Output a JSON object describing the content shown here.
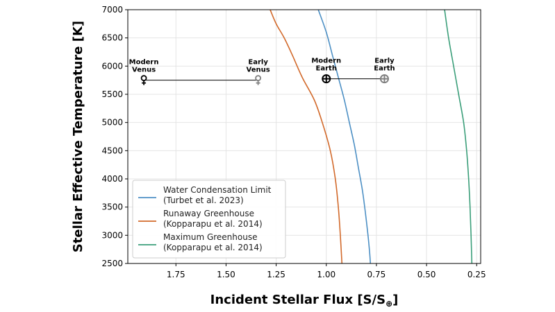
{
  "chart_data": {
    "type": "line",
    "xlabel": "Incident Stellar Flux [S/S",
    "xlabel_sub": "⊕",
    "xlabel_close": "]",
    "ylabel": "Stellar Effective Temperature [K]",
    "xlim": [
      1.99,
      0.23
    ],
    "ylim": [
      2500,
      7000
    ],
    "x_reversed": true,
    "grid": true,
    "legend_placement": "lower-left",
    "xticks": [
      {
        "value": 1.75,
        "label": "1.75"
      },
      {
        "value": 1.5,
        "label": "1.50"
      },
      {
        "value": 1.25,
        "label": "1.25"
      },
      {
        "value": 1.0,
        "label": "1.00"
      },
      {
        "value": 0.75,
        "label": "0.75"
      },
      {
        "value": 0.5,
        "label": "0.50"
      },
      {
        "value": 0.25,
        "label": "0.25"
      }
    ],
    "yticks": [
      {
        "value": 2500,
        "label": "2500"
      },
      {
        "value": 3000,
        "label": "3000"
      },
      {
        "value": 3500,
        "label": "3500"
      },
      {
        "value": 4000,
        "label": "4000"
      },
      {
        "value": 4500,
        "label": "4500"
      },
      {
        "value": 5000,
        "label": "5000"
      },
      {
        "value": 5500,
        "label": "5500"
      },
      {
        "value": 6000,
        "label": "6000"
      },
      {
        "value": 6500,
        "label": "6500"
      },
      {
        "value": 7000,
        "label": "7000"
      }
    ],
    "series": [
      {
        "name": "Water Condensation Limit",
        "name_line2": "(Turbet et al. 2023)",
        "color": "#4c8fc4",
        "points": [
          [
            1.04,
            7000
          ],
          [
            1.0,
            6600
          ],
          [
            0.97,
            6200
          ],
          [
            0.94,
            5800
          ],
          [
            0.91,
            5400
          ],
          [
            0.885,
            5000
          ],
          [
            0.86,
            4600
          ],
          [
            0.84,
            4200
          ],
          [
            0.82,
            3800
          ],
          [
            0.805,
            3400
          ],
          [
            0.792,
            3000
          ],
          [
            0.784,
            2700
          ],
          [
            0.78,
            2500
          ]
        ]
      },
      {
        "name": "Runaway Greenhouse",
        "name_line2": "(Kopparapu et al. 2014)",
        "color": "#d2692a",
        "points": [
          [
            1.28,
            7000
          ],
          [
            1.25,
            6750
          ],
          [
            1.21,
            6500
          ],
          [
            1.17,
            6200
          ],
          [
            1.12,
            5800
          ],
          [
            1.06,
            5400
          ],
          [
            1.02,
            5000
          ],
          [
            0.98,
            4500
          ],
          [
            0.955,
            4000
          ],
          [
            0.94,
            3500
          ],
          [
            0.93,
            3000
          ],
          [
            0.922,
            2500
          ]
        ]
      },
      {
        "name": "Maximum Greenhouse",
        "name_line2": "(Kopparapu et al. 2014)",
        "color": "#3a9e79",
        "points": [
          [
            0.41,
            7000
          ],
          [
            0.39,
            6500
          ],
          [
            0.365,
            6000
          ],
          [
            0.34,
            5500
          ],
          [
            0.315,
            5000
          ],
          [
            0.3,
            4500
          ],
          [
            0.29,
            4000
          ],
          [
            0.283,
            3500
          ],
          [
            0.278,
            3000
          ],
          [
            0.274,
            2500
          ]
        ]
      }
    ],
    "markers": [
      {
        "label_line1": "Modern",
        "label_line2": "Venus",
        "x": 1.91,
        "y": 5750,
        "symbol": "♀",
        "color": "#000000"
      },
      {
        "label_line1": "Early",
        "label_line2": "Venus",
        "x": 1.34,
        "y": 5750,
        "symbol": "♀",
        "color": "#808080"
      },
      {
        "label_line1": "Modern",
        "label_line2": "Earth",
        "x": 1.0,
        "y": 5775,
        "symbol": "⊕",
        "color": "#000000"
      },
      {
        "label_line1": "Early",
        "label_line2": "Earth",
        "x": 0.71,
        "y": 5775,
        "symbol": "⊕",
        "color": "#808080"
      }
    ],
    "connectors": [
      {
        "from": [
          1.91,
          5750
        ],
        "to": [
          1.34,
          5750
        ]
      },
      {
        "from": [
          1.0,
          5775
        ],
        "to": [
          0.71,
          5775
        ]
      }
    ]
  }
}
